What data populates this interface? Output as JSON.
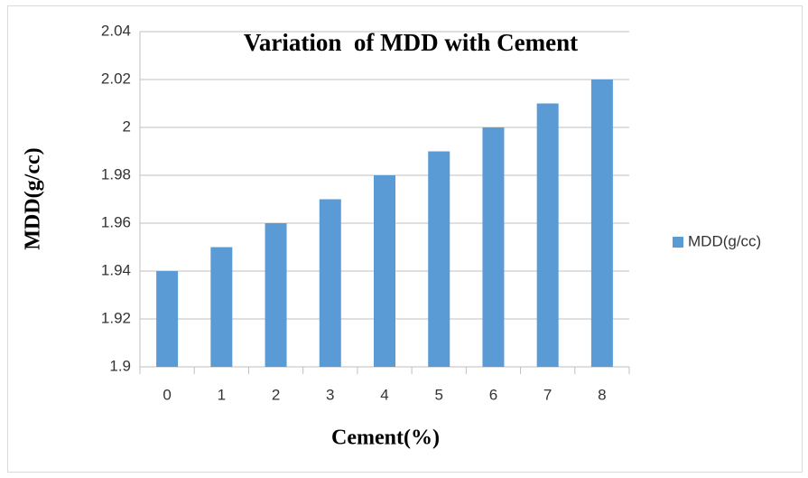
{
  "chart_data": {
    "type": "bar",
    "title": "Variation  of MDD with Cement",
    "x_label": "Cement(%)",
    "y_label": "MDD(g/cc)",
    "categories": [
      "0",
      "1",
      "2",
      "3",
      "4",
      "5",
      "6",
      "7",
      "8"
    ],
    "series": [
      {
        "name": "MDD(g/cc)",
        "color": "#5b9bd5",
        "values": [
          1.94,
          1.95,
          1.96,
          1.97,
          1.98,
          1.99,
          2,
          2.01,
          2.02
        ]
      }
    ],
    "ylim": [
      1.9,
      2.04
    ],
    "yticks": [
      1.9,
      1.92,
      1.94,
      1.96,
      1.98,
      2,
      2.02,
      2.04
    ],
    "grid": true,
    "legend": "right"
  }
}
